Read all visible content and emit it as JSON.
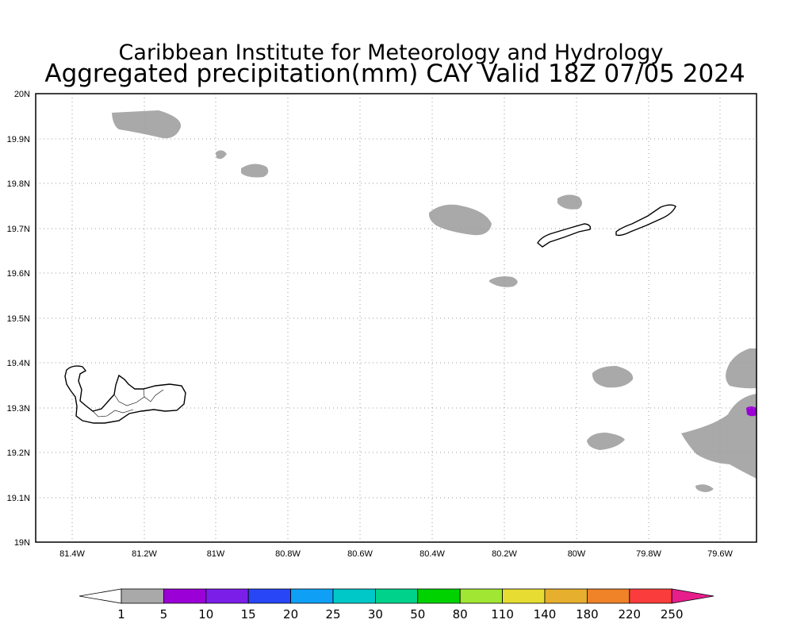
{
  "title": {
    "line1": "Caribbean Institute for Meteorology and Hydrology",
    "line2": "Aggregated precipitation(mm) CAY Valid 18Z 07/05 2024"
  },
  "map": {
    "lon_range": [
      -81.5,
      -79.5
    ],
    "lat_range": [
      19.0,
      20.0
    ],
    "lon_ticks": [
      "81.4W",
      "81.2W",
      "81W",
      "80.8W",
      "80.6W",
      "80.4W",
      "80.2W",
      "80W",
      "79.8W",
      "79.6W"
    ],
    "lat_ticks": [
      "19N",
      "19.1N",
      "19.2N",
      "19.3N",
      "19.4N",
      "19.5N",
      "19.6N",
      "19.7N",
      "19.8N",
      "19.9N",
      "20N"
    ],
    "grid": true,
    "islands": [
      "Grand Cayman",
      "Little Cayman",
      "Cayman Brac"
    ],
    "precip_areas_color": "#a9a9a9",
    "precip_max_color": "#9b00d6"
  },
  "colorbar": {
    "labels": [
      "1",
      "5",
      "10",
      "15",
      "20",
      "25",
      "30",
      "50",
      "80",
      "110",
      "140",
      "180",
      "220",
      "250"
    ],
    "colors": [
      "#a9a9a9",
      "#9b00d6",
      "#7a1ee8",
      "#2846f5",
      "#0fa0f5",
      "#00c8c8",
      "#00d28c",
      "#00d200",
      "#a0e632",
      "#e6dc32",
      "#e6af2d",
      "#f08228",
      "#fa3c3c",
      "#e81e8c"
    ],
    "under_color": "#ffffff",
    "over_color": "#e81e8c"
  }
}
